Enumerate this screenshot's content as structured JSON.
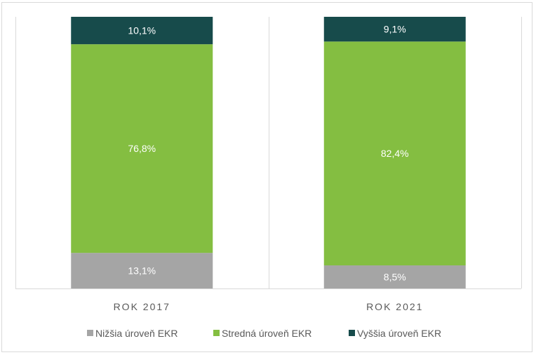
{
  "chart_data": {
    "type": "bar",
    "stacked": true,
    "title": "",
    "xlabel": "",
    "ylabel": "",
    "ylim": [
      0,
      100
    ],
    "grid": false,
    "legend_position": "bottom",
    "categories": [
      "ROK 2017",
      "ROK 2021"
    ],
    "series": [
      {
        "name": "Nižšia úroveň EKR",
        "color": "#A5A5A5",
        "values": [
          13.1,
          8.5
        ],
        "labels": [
          "13,1%",
          "8,5%"
        ]
      },
      {
        "name": "Stredná úroveň EKR",
        "color": "#84BE41",
        "values": [
          76.8,
          82.4
        ],
        "labels": [
          "76,8%",
          "82,4%"
        ]
      },
      {
        "name": "Vyššia úroveň EKR",
        "color": "#174B4B",
        "values": [
          10.1,
          9.1
        ],
        "labels": [
          "10,1%",
          "9,1%"
        ]
      }
    ]
  }
}
